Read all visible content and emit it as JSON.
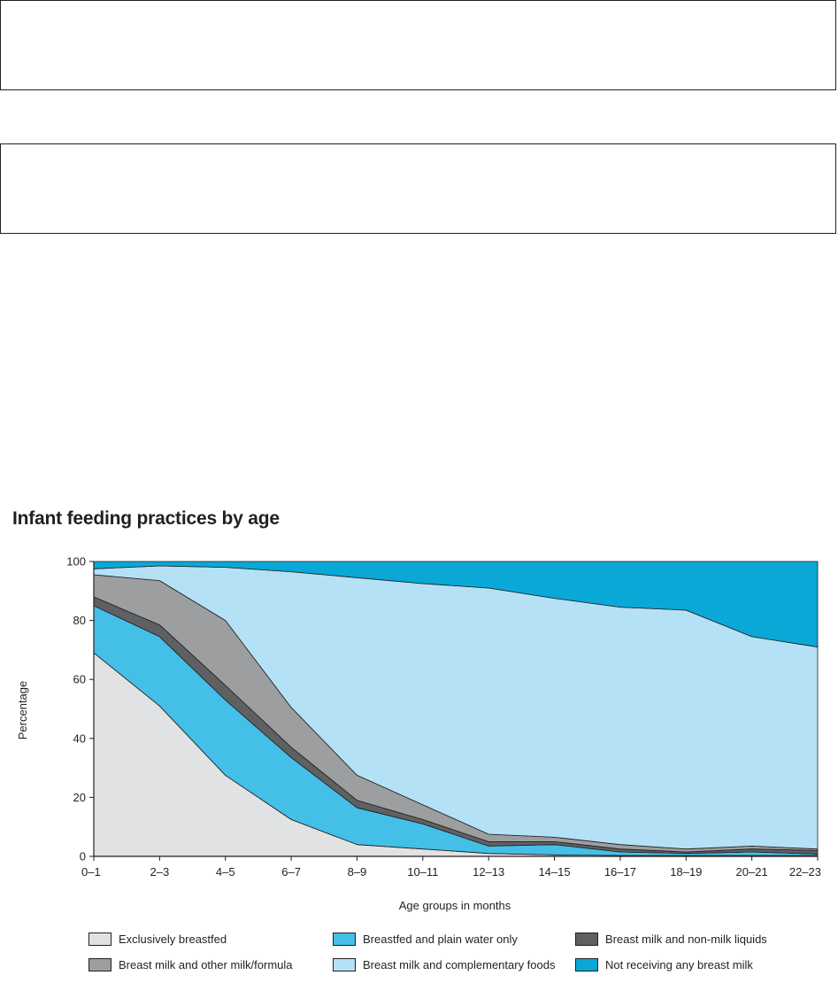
{
  "chart_data": {
    "type": "area",
    "stacked": true,
    "title": "Infant feeding practices by age",
    "xlabel": "Age groups in months",
    "ylabel": "Percentage",
    "ylim": [
      0,
      100
    ],
    "yticks": [
      "0",
      "20",
      "40",
      "60",
      "80",
      "100"
    ],
    "categories": [
      "0–1",
      "2–3",
      "4–5",
      "6–7",
      "8–9",
      "10–11",
      "12–13",
      "14–15",
      "16–17",
      "18–19",
      "20–21",
      "22–23"
    ],
    "legend_position": "bottom",
    "series": [
      {
        "name": "Exclusively breastfed",
        "color": "#e1e2e3",
        "values": [
          69,
          51,
          27.5,
          12.5,
          4,
          2.5,
          1,
          0.5,
          0.3,
          0.3,
          0.3,
          0.3
        ]
      },
      {
        "name": "Breastfed and plain water only",
        "color": "#44bfe7",
        "values": [
          16,
          23.5,
          25.5,
          21,
          12.5,
          8.5,
          2.5,
          3.5,
          1.2,
          0.7,
          1.2,
          0.5
        ]
      },
      {
        "name": "Breast milk and non-milk liquids",
        "color": "#5f6062",
        "values": [
          3,
          4,
          5,
          3.5,
          2.5,
          1.5,
          1.5,
          1,
          1,
          0.5,
          1,
          1.2
        ]
      },
      {
        "name": "Breast milk and other milk/formula",
        "color": "#9d9ea0",
        "values": [
          7.5,
          15,
          22,
          13.5,
          8.5,
          5,
          2.5,
          1.5,
          1.5,
          1,
          1,
          0.5
        ]
      },
      {
        "name": "Breast milk and complementary foods",
        "color": "#b4e1f6",
        "values": [
          2,
          5,
          18,
          46,
          67,
          75,
          83.5,
          81,
          80.5,
          81,
          71,
          68.5
        ]
      },
      {
        "name": "Not receiving any breast milk",
        "color": "#0aa8d6",
        "values": [
          2.5,
          1.5,
          2,
          3.5,
          5.5,
          7.5,
          9,
          12.5,
          15.5,
          16.5,
          25.5,
          29
        ]
      }
    ]
  }
}
